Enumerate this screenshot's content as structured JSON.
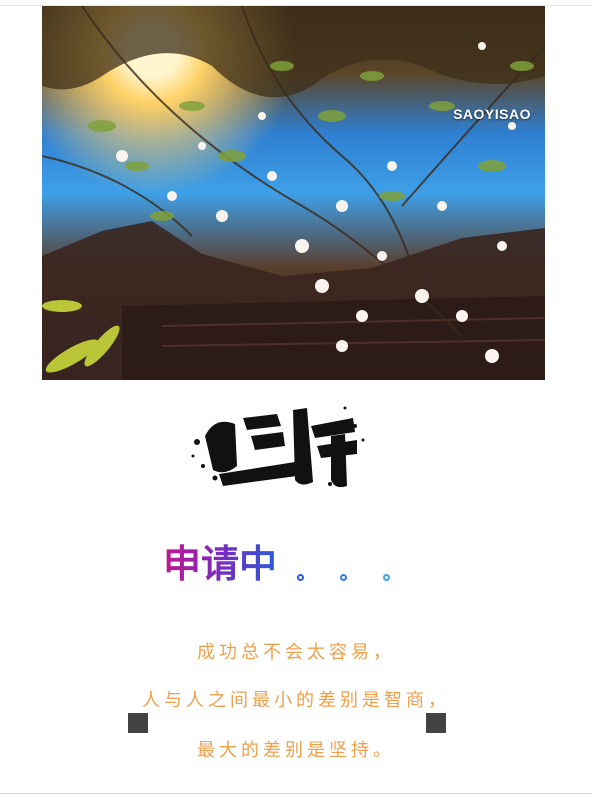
{
  "photo": {
    "watermark": "SAOYISAO",
    "subject": "blossom-branches-against-sky"
  },
  "calligraphy": {
    "text": "坚持"
  },
  "status": {
    "title": "申请中",
    "dot_colors": [
      "#2a5bd8",
      "#3a7de0",
      "#3aa6e8"
    ]
  },
  "quote": {
    "line1": "成功总不会太容易，",
    "line2": "人与人之间最小的差别是智商，",
    "line3": "最大的差别是坚持。"
  }
}
